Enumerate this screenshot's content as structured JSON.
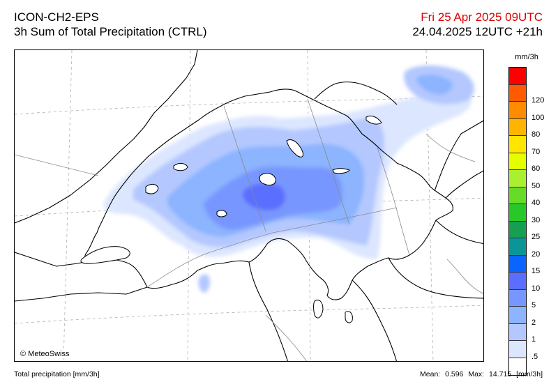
{
  "header": {
    "model": "ICON-CH2-EPS",
    "product": "3h Sum of Total Precipitation (CTRL)",
    "valid_time": "Fri 25 Apr 2025 09UTC",
    "run_time": "24.04.2025 12UTC +21h"
  },
  "map": {
    "copyright": "© MeteoSwiss",
    "background": "#ffffff"
  },
  "legend": {
    "unit": "mm/3h",
    "levels": [
      {
        "label": "",
        "color": "#ff0000"
      },
      {
        "label": "120",
        "color": "#ff5a00"
      },
      {
        "label": "100",
        "color": "#ff8c00"
      },
      {
        "label": "80",
        "color": "#ffb400"
      },
      {
        "label": "70",
        "color": "#ffe600"
      },
      {
        "label": "60",
        "color": "#e6ff00"
      },
      {
        "label": "50",
        "color": "#aaf032"
      },
      {
        "label": "40",
        "color": "#64dc28"
      },
      {
        "label": "30",
        "color": "#28c828"
      },
      {
        "label": "25",
        "color": "#14a050"
      },
      {
        "label": "20",
        "color": "#0a9696"
      },
      {
        "label": "15",
        "color": "#0a64ff"
      },
      {
        "label": "10",
        "color": "#5a6eff"
      },
      {
        "label": "5",
        "color": "#7896ff"
      },
      {
        "label": "2",
        "color": "#8cb4ff"
      },
      {
        "label": "1",
        "color": "#b4c8ff"
      },
      {
        "label": ".5",
        "color": "#dce6ff"
      },
      {
        "label": "",
        "color": "#ffffff"
      }
    ]
  },
  "footer": {
    "variable": "Total precipitation [mm/3h]",
    "mean_label": "Mean:",
    "mean_value": "0.596",
    "max_label": "Max:",
    "max_value": "14.715",
    "unit": "[mm/3h]"
  }
}
